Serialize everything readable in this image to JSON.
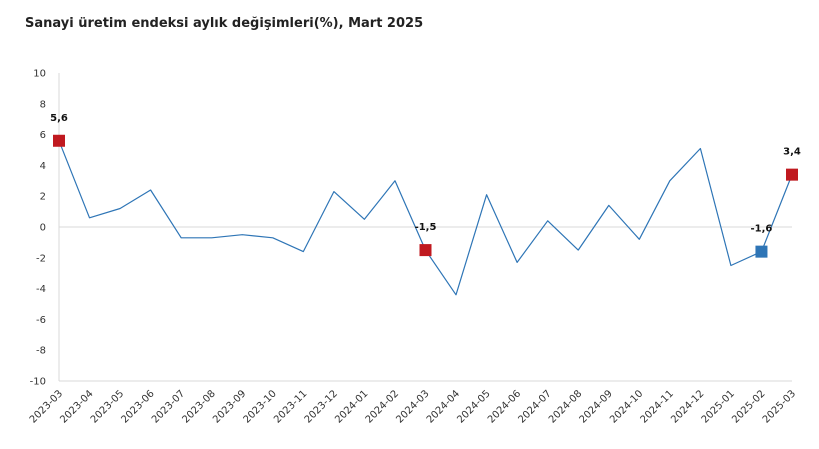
{
  "chart_data": {
    "type": "line",
    "title": "Sanayi üretim endeksi aylık değişimleri(%), Mart 2025",
    "xlabel": "",
    "ylabel": "",
    "ylim": [
      -10,
      10
    ],
    "ytick_step": 2,
    "grid": "zero-line",
    "legend": "none",
    "categories": [
      "2023-03",
      "2023-04",
      "2023-05",
      "2023-06",
      "2023-07",
      "2023-08",
      "2023-09",
      "2023-10",
      "2023-11",
      "2023-12",
      "2024-01",
      "2024-02",
      "2024-03",
      "2024-04",
      "2024-05",
      "2024-06",
      "2024-07",
      "2024-08",
      "2024-09",
      "2024-10",
      "2024-11",
      "2024-12",
      "2025-01",
      "2025-02",
      "2025-03"
    ],
    "series": [
      {
        "color": "#2e75b6",
        "values": [
          5.6,
          0.6,
          1.2,
          2.4,
          -0.7,
          -0.7,
          -0.5,
          -0.7,
          -1.6,
          2.3,
          0.5,
          3.0,
          -1.5,
          -4.4,
          2.1,
          -2.3,
          0.4,
          -1.5,
          1.4,
          -0.8,
          3.0,
          5.1,
          -2.5,
          -1.6,
          3.4
        ]
      }
    ],
    "highlighted_points": [
      {
        "category": "2023-03",
        "label": "5,6",
        "color": "#c0191f"
      },
      {
        "category": "2024-03",
        "label": "-1,5",
        "color": "#c0191f"
      },
      {
        "category": "2025-02",
        "label": "-1,6",
        "color": "#2e75b6"
      },
      {
        "category": "2025-03",
        "label": "3,4",
        "color": "#c0191f"
      }
    ]
  }
}
